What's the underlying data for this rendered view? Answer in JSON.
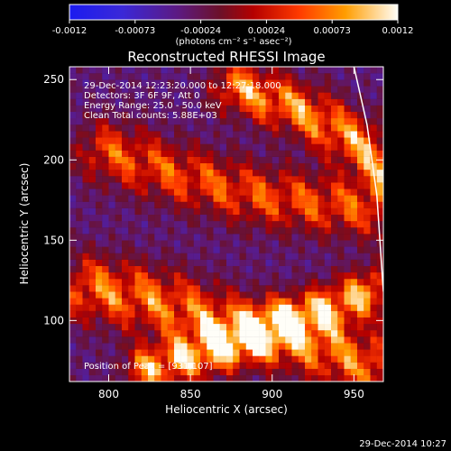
{
  "chart_data": {
    "type": "heatmap",
    "title": "Reconstructed RHESSI Image",
    "xlabel": "Heliocentric X (arcsec)",
    "ylabel": "Heliocentric Y (arcsec)",
    "xlim": [
      776,
      968
    ],
    "ylim": [
      62,
      258
    ],
    "x_ticks": [
      800,
      850,
      900,
      950
    ],
    "y_ticks": [
      100,
      150,
      200,
      250
    ],
    "colorbar": {
      "min": -0.0012,
      "max": 0.0012,
      "ticks": [
        "-0.0012",
        "-0.00073",
        "-0.00024",
        "0.00024",
        "0.00073",
        "0.0012"
      ],
      "unit_label": "(photons cm⁻² s⁻¹ asec⁻²)"
    },
    "annotations": {
      "time_range": "29-Dec-2014 12:23:20.000 to 12:27:18.000",
      "detectors": "Detectors: 3F 6F 9F, Att 0",
      "energy_range": "Energy Range: 25.0 - 50.0 keV",
      "clean_counts": "Clean    Total counts: 5.88E+03",
      "peak_position": "Position of Peak = [931,107]"
    },
    "limb_curve": [
      {
        "x": 950,
        "y": 258
      },
      {
        "x": 958,
        "y": 222
      },
      {
        "x": 964,
        "y": 178
      },
      {
        "x": 968,
        "y": 118
      }
    ],
    "emission_ridges": [
      {
        "center": [
          [
            800,
            205
          ],
          [
            845,
            190
          ],
          [
            890,
            178
          ],
          [
            935,
            172
          ],
          [
            965,
            170
          ]
        ],
        "peak": 0.00075,
        "width": 13
      },
      {
        "center": [
          [
            790,
            120
          ],
          [
            830,
            112
          ],
          [
            875,
            96
          ],
          [
            915,
            88
          ],
          [
            960,
            72
          ]
        ],
        "peak": 0.00095,
        "width": 14
      },
      {
        "center": [
          [
            880,
            245
          ],
          [
            920,
            230
          ],
          [
            950,
            212
          ],
          [
            968,
            198
          ]
        ],
        "peak": 0.0011,
        "width": 11
      },
      {
        "center": [
          [
            825,
            70
          ],
          [
            860,
            80
          ],
          [
            905,
            98
          ],
          [
            935,
            108
          ],
          [
            960,
            118
          ]
        ],
        "peak": 0.0012,
        "width": 10
      }
    ],
    "background_level": -0.00035,
    "date_stamp": "29-Dec-2014 10:27"
  }
}
